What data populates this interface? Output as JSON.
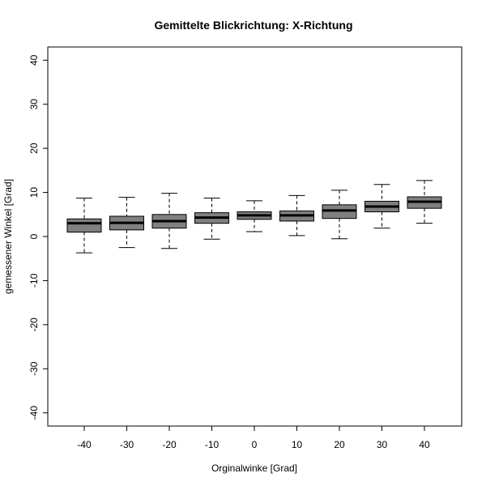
{
  "chart_data": {
    "type": "boxplot",
    "title": "Gemittelte Blickrichtung: X-Richtung",
    "xlabel": "Orginalwinke [Grad]",
    "ylabel": "gemessener Winkel [Grad]",
    "ylim": [
      -43,
      43
    ],
    "yticks": [
      -40,
      -30,
      -20,
      -10,
      0,
      10,
      20,
      30,
      40
    ],
    "categories": [
      "-40",
      "-30",
      "-20",
      "-10",
      "0",
      "10",
      "20",
      "30",
      "40"
    ],
    "boxes": [
      {
        "whisker_low": -3.7,
        "q1": 1.0,
        "median": 3.0,
        "q3": 4.0,
        "whisker_high": 8.7
      },
      {
        "whisker_low": -2.5,
        "q1": 1.5,
        "median": 3.1,
        "q3": 4.6,
        "whisker_high": 8.9
      },
      {
        "whisker_low": -2.7,
        "q1": 1.9,
        "median": 3.5,
        "q3": 5.0,
        "whisker_high": 9.8
      },
      {
        "whisker_low": -0.6,
        "q1": 3.0,
        "median": 4.3,
        "q3": 5.4,
        "whisker_high": 8.7
      },
      {
        "whisker_low": 1.1,
        "q1": 3.9,
        "median": 4.8,
        "q3": 5.6,
        "whisker_high": 8.1
      },
      {
        "whisker_low": 0.2,
        "q1": 3.5,
        "median": 4.8,
        "q3": 5.8,
        "whisker_high": 9.3
      },
      {
        "whisker_low": -0.5,
        "q1": 4.1,
        "median": 5.9,
        "q3": 7.2,
        "whisker_high": 10.5
      },
      {
        "whisker_low": 1.9,
        "q1": 5.6,
        "median": 6.8,
        "q3": 8.0,
        "whisker_high": 11.8
      },
      {
        "whisker_low": 3.0,
        "q1": 6.4,
        "median": 7.9,
        "q3": 9.0,
        "whisker_high": 12.7
      }
    ],
    "box_fill": "#808080",
    "line_color": "#000000"
  }
}
